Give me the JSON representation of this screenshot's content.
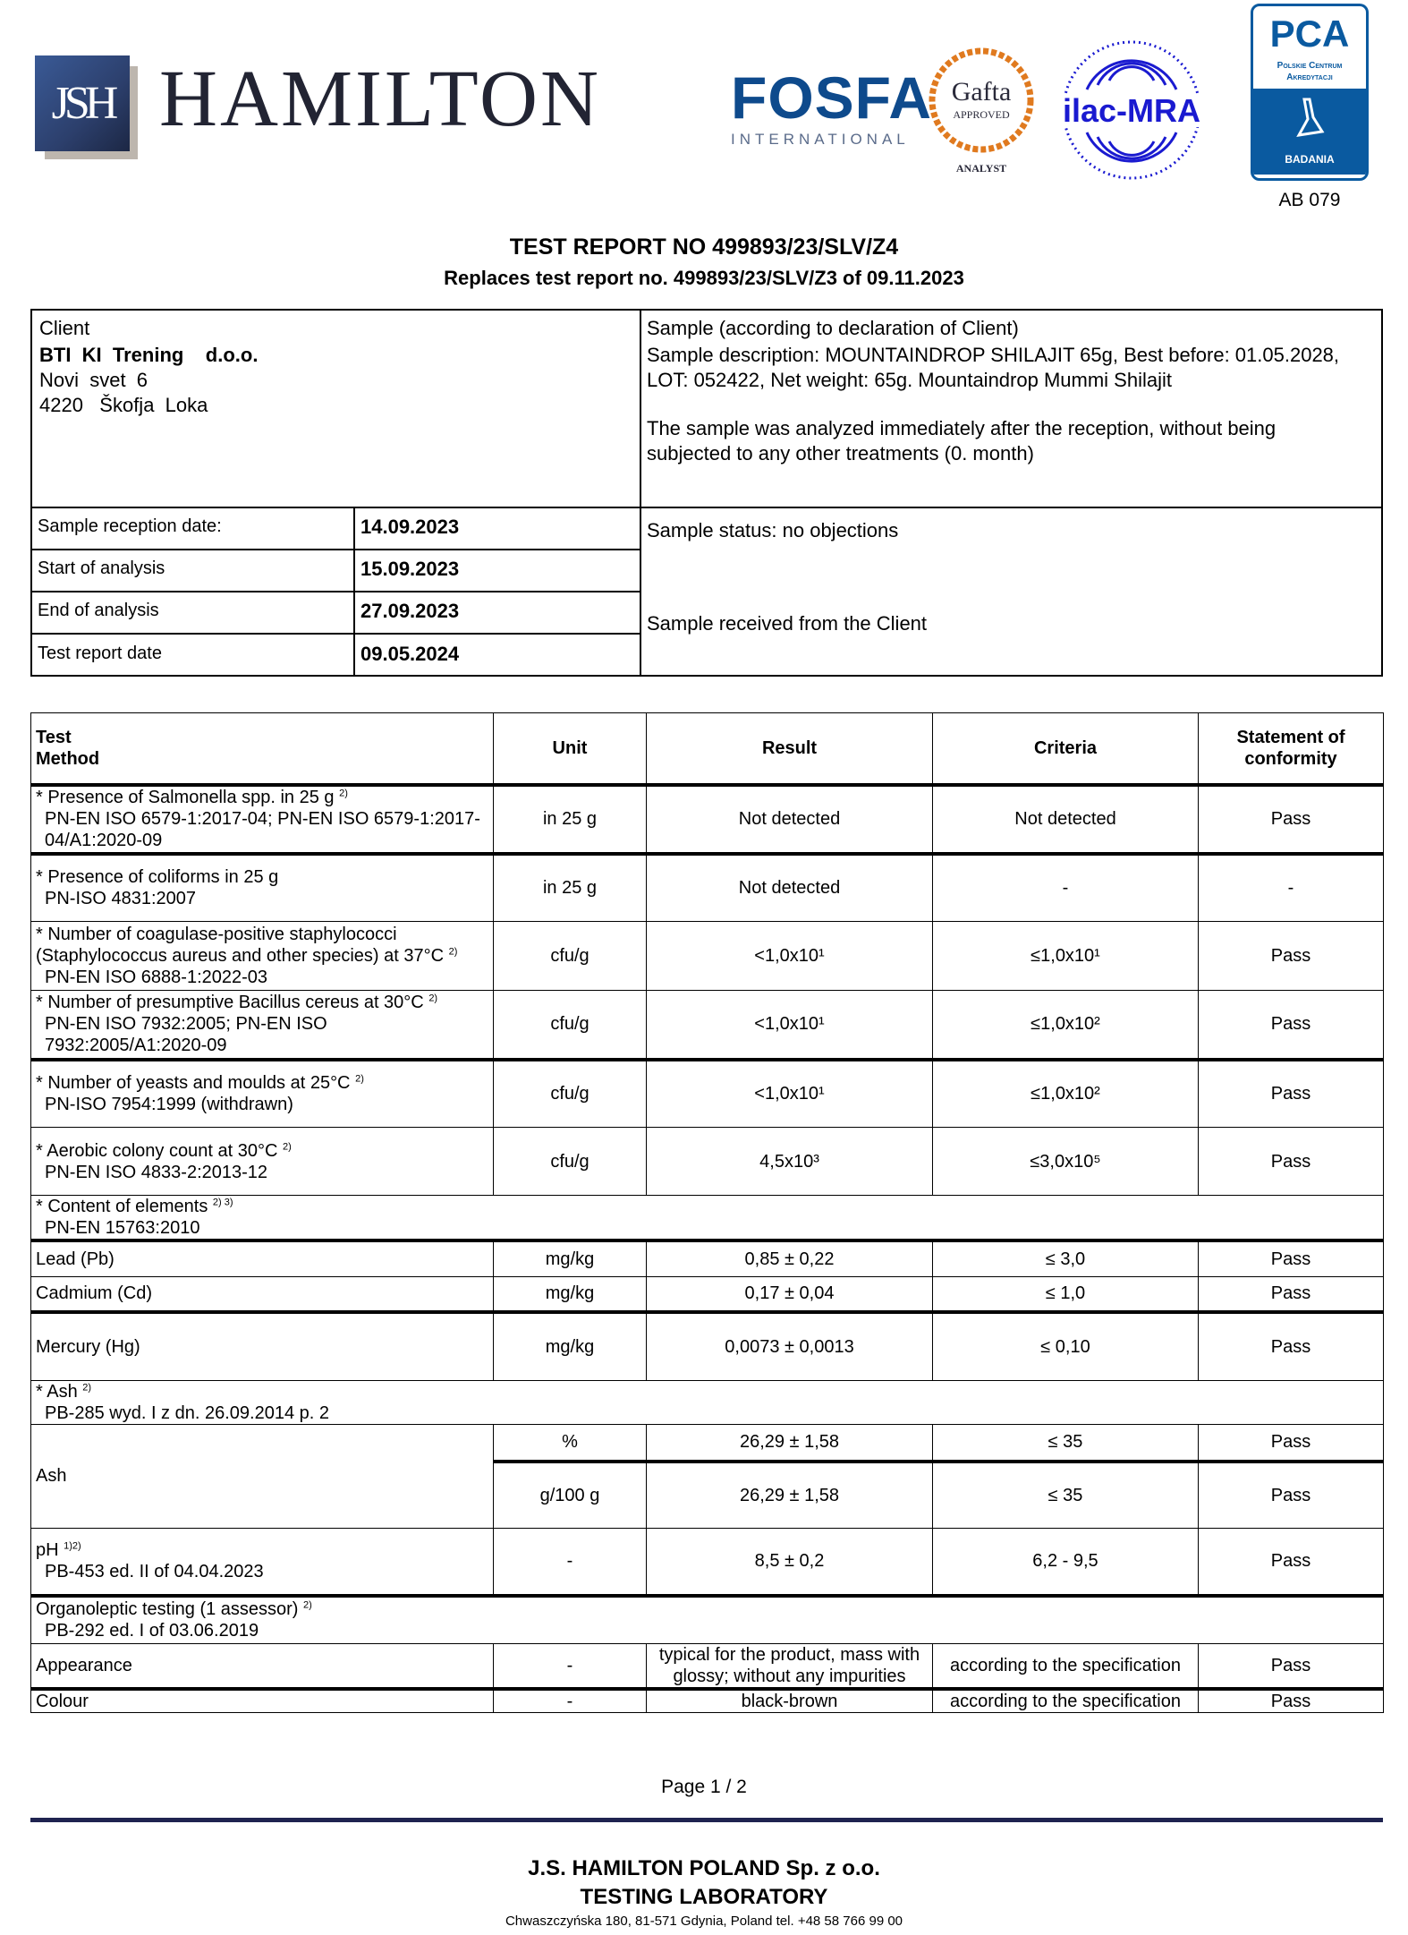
{
  "header": {
    "logo_text": "JSH",
    "company": "HAMILTON",
    "fosfa": {
      "name": "FOSFA",
      "sub": "INTERNATIONAL"
    },
    "gafta": {
      "name": "Gafta",
      "sub": "APPROVED",
      "role": "ANALYST"
    },
    "ilac": "ilac-MRA",
    "pca": {
      "name": "PCA",
      "full": "Polskie Centrum Akredytacji",
      "label": "BADANIA",
      "number": "AB 079"
    }
  },
  "report": {
    "title": "TEST REPORT NO 499893/23/SLV/Z4",
    "replaces": "Replaces test report no. 499893/23/SLV/Z3 of 09.11.2023"
  },
  "client": {
    "heading": "Client",
    "name": "BTI  KI  Trening    d.o.o.",
    "street": "Novi  svet  6",
    "city": "4220   Škofja  Loka"
  },
  "sample": {
    "heading": "Sample (according to declaration of Client)",
    "description": "Sample description: MOUNTAINDROP SHILAJIT 65g, Best before: 01.05.2028, LOT: 052422, Net weight: 65g. Mountaindrop Mummi Shilajit",
    "note": "The sample was analyzed immediately after the reception, without being subjected to any other treatments (0. month)",
    "status": "Sample status: no objections",
    "received": "Sample received from the Client"
  },
  "dates": [
    {
      "label": "Sample reception date:",
      "value": "14.09.2023"
    },
    {
      "label": "Start of analysis",
      "value": "15.09.2023"
    },
    {
      "label": "End of analysis",
      "value": "27.09.2023"
    },
    {
      "label": "Test report date",
      "value": "09.05.2024"
    }
  ],
  "results": {
    "headers": {
      "test": "Test",
      "method": "Method",
      "unit": "Unit",
      "result": "Result",
      "criteria": "Criteria",
      "conformity": "Statement of conformity"
    },
    "rows": [
      {
        "type": "test",
        "name": "* Presence of Salmonella spp. in 25 g",
        "sup": "2)",
        "method": "PN-EN ISO 6579-1:2017-04; PN-EN ISO 6579-1:2017-04/A1:2020-09",
        "unit": "in 25 g",
        "result": "Not detected",
        "criteria": "Not detected",
        "conformity": "Pass",
        "thick": true
      },
      {
        "type": "test",
        "name": "* Presence of coliforms in 25 g",
        "sup": "",
        "method": "PN-ISO 4831:2007",
        "unit": "in 25 g",
        "result": "Not detected",
        "criteria": "-",
        "conformity": "-"
      },
      {
        "type": "test",
        "name": "* Number of coagulase-positive staphylococci (Staphylococcus aureus and other species) at 37°C",
        "sup": "2)",
        "method": "PN-EN ISO 6888-1:2022-03",
        "unit": "cfu/g",
        "result": "<1,0x10¹",
        "criteria": "≤1,0x10¹",
        "conformity": "Pass"
      },
      {
        "type": "test",
        "name": "* Number of presumptive Bacillus cereus at 30°C",
        "sup": "2)",
        "method": "PN-EN ISO 7932:2005; PN-EN ISO 7932:2005/A1:2020-09",
        "unit": "cfu/g",
        "result": "<1,0x10¹",
        "criteria": "≤1,0x10²",
        "conformity": "Pass",
        "thick": true
      },
      {
        "type": "test",
        "name": "* Number of yeasts and moulds at 25°C",
        "sup": "2)",
        "method": "PN-ISO 7954:1999 (withdrawn)",
        "unit": "cfu/g",
        "result": "<1,0x10¹",
        "criteria": "≤1,0x10²",
        "conformity": "Pass"
      },
      {
        "type": "test",
        "name": "* Aerobic colony count at 30°C",
        "sup": "2)",
        "method": "PN-EN ISO 4833-2:2013-12",
        "unit": "cfu/g",
        "result": "4,5x10³",
        "criteria": "≤3,0x10⁵",
        "conformity": "Pass"
      },
      {
        "type": "group",
        "name": "* Content of elements",
        "sup": "2) 3)",
        "method": "PN-EN 15763:2010",
        "thick": true
      },
      {
        "type": "simple",
        "name": "Lead (Pb)",
        "unit": "mg/kg",
        "result": "0,85 ± 0,22",
        "criteria": "≤ 3,0",
        "conformity": "Pass"
      },
      {
        "type": "simple",
        "name": "Cadmium (Cd)",
        "unit": "mg/kg",
        "result": "0,17 ± 0,04",
        "criteria": "≤ 1,0",
        "conformity": "Pass",
        "thick": true
      },
      {
        "type": "simple",
        "name": "Mercury (Hg)",
        "unit": "mg/kg",
        "result": "0,0073 ± 0,0013",
        "criteria": "≤ 0,10",
        "conformity": "Pass"
      },
      {
        "type": "group",
        "name": "* Ash",
        "sup": "2)",
        "method": "PB-285 wyd. I z dn. 26.09.2014 p. 2"
      },
      {
        "type": "multi",
        "name": "Ash",
        "subrows": [
          {
            "unit": "%",
            "result": "26,29 ± 1,58",
            "criteria": "≤ 35",
            "conformity": "Pass"
          },
          {
            "unit": "g/100 g",
            "result": "26,29 ± 1,58",
            "criteria": "≤ 35",
            "conformity": "Pass"
          }
        ]
      },
      {
        "type": "test",
        "name": "pH",
        "sup": "1)2)",
        "method": "PB-453 ed. II of 04.04.2023",
        "unit": "-",
        "result": "8,5 ± 0,2",
        "criteria": "6,2 - 9,5",
        "conformity": "Pass",
        "thick": true,
        "nostar": true
      },
      {
        "type": "group",
        "name": "Organoleptic testing (1 assessor)",
        "sup": "2)",
        "method": "PB-292 ed. I of 03.06.2019"
      },
      {
        "type": "simple",
        "name": "Appearance",
        "unit": "-",
        "result": "typical for the product, mass with glossy; without any impurities",
        "criteria": "according to the specification",
        "conformity": "Pass",
        "thick": true
      },
      {
        "type": "simple",
        "name": "Colour",
        "unit": "-",
        "result": "black-brown",
        "criteria": "according to the specification",
        "conformity": "Pass"
      }
    ]
  },
  "footer": {
    "page": "Page  1 / 2",
    "company": "J.S. HAMILTON POLAND Sp. z o.o.",
    "lab": "TESTING LABORATORY",
    "address": "Chwaszczyńska 180, 81-571 Gdynia, Poland tel. +48 58 766 99 00"
  },
  "colors": {
    "brand_navy": "#1f2350",
    "fosfa_blue": "#0e4a8c",
    "gafta_orange": "#e07a1f",
    "ilac_blue": "#1a1ad0",
    "pca_blue": "#0a5aa0"
  }
}
